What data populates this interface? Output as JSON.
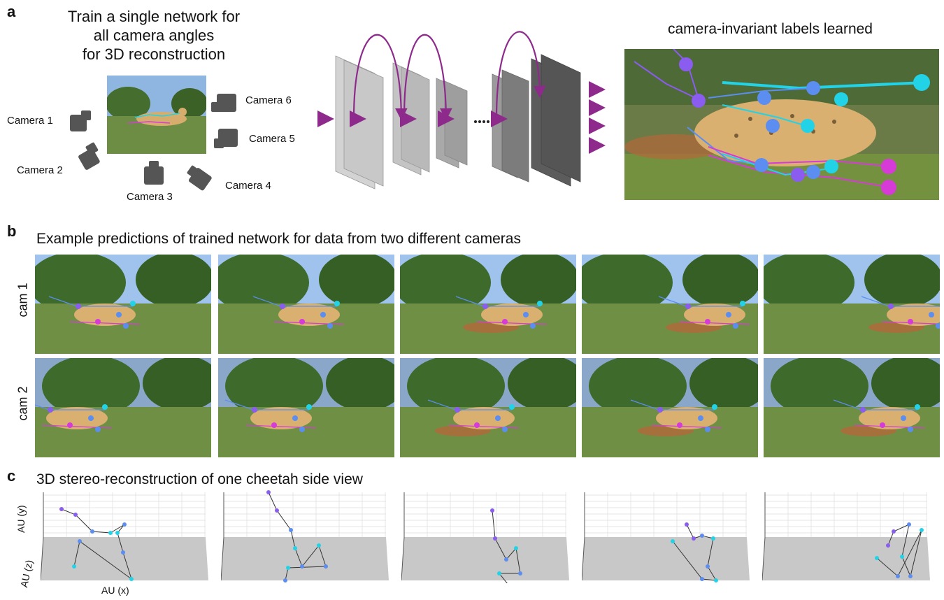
{
  "panel_a": {
    "letter": "a",
    "title": "Train a single network for all camera angles for 3D reconstruction",
    "title_lines": [
      "Train a single network for",
      "all camera angles",
      "for 3D reconstruction"
    ],
    "cameras": [
      "Camera 1",
      "Camera 2",
      "Camera 3",
      "Camera 4",
      "Camera 5",
      "Camera 6"
    ],
    "result_title": "camera-invariant labels learned"
  },
  "panel_b": {
    "letter": "b",
    "title": "Example predictions of trained network for data from two different cameras",
    "rows": [
      "cam 1",
      "cam 2"
    ]
  },
  "panel_c": {
    "letter": "c",
    "title": "3D stereo-reconstruction of  one cheetah side view",
    "axis_y": "AU (y)",
    "axis_z": "AU (z)",
    "axis_x": "AU (x)"
  },
  "colors": {
    "arrow": "#8e2a8c",
    "sky": "#9fc3ec",
    "grass": "#6f8f45",
    "tree": "#3e6a2b",
    "cheetah": "#d9b070",
    "cyan": "#22d3e8",
    "blue": "#5b8ef0",
    "purple": "#8a5cf0",
    "magenta": "#d63bd8",
    "floor": "#c8c8c8"
  },
  "icons": [
    "camera-icon",
    "network-layer-stack",
    "skip-connection-arrow",
    "ellipsis-dots"
  ]
}
